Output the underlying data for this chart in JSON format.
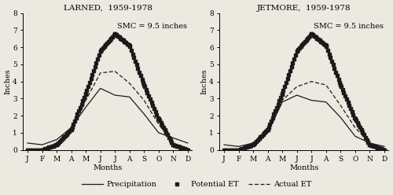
{
  "title_left": "LARNED,  1959-1978",
  "title_right": "JETMORE,  1959-1978",
  "smc_label": "SMC = 9.5 inches",
  "xlabel": "Months",
  "ylabel": "Inches",
  "months": [
    "J",
    "F",
    "M",
    "A",
    "M",
    "J",
    "J",
    "A",
    "S",
    "O",
    "N",
    "D"
  ],
  "ylim": [
    0,
    8
  ],
  "yticks": [
    0,
    1,
    2,
    3,
    4,
    5,
    6,
    7,
    8
  ],
  "larned_precip": [
    0.4,
    0.3,
    0.6,
    1.3,
    2.5,
    3.6,
    3.2,
    3.1,
    2.1,
    1.0,
    0.7,
    0.4
  ],
  "larned_pot_et": [
    0.0,
    0.0,
    0.3,
    1.2,
    3.3,
    5.8,
    6.8,
    6.1,
    3.8,
    1.8,
    0.3,
    0.0
  ],
  "larned_act_et": [
    0.0,
    0.0,
    0.3,
    1.1,
    2.9,
    4.5,
    4.6,
    3.9,
    2.9,
    1.5,
    0.4,
    0.0
  ],
  "jetmore_precip": [
    0.3,
    0.2,
    0.4,
    1.0,
    2.8,
    3.2,
    2.9,
    2.8,
    1.9,
    0.8,
    0.4,
    0.2
  ],
  "jetmore_pot_et": [
    0.0,
    0.0,
    0.3,
    1.2,
    3.3,
    5.8,
    6.8,
    6.1,
    3.8,
    1.8,
    0.3,
    0.0
  ],
  "jetmore_act_et": [
    0.0,
    0.0,
    0.3,
    1.0,
    2.9,
    3.7,
    4.0,
    3.8,
    2.6,
    1.3,
    0.4,
    0.0
  ],
  "color": "#1a1a1a",
  "bg_color": "#ece9e1",
  "title_fontsize": 7.5,
  "label_fontsize": 7,
  "tick_fontsize": 6.5,
  "legend_fontsize": 7,
  "smc_fontsize": 7
}
